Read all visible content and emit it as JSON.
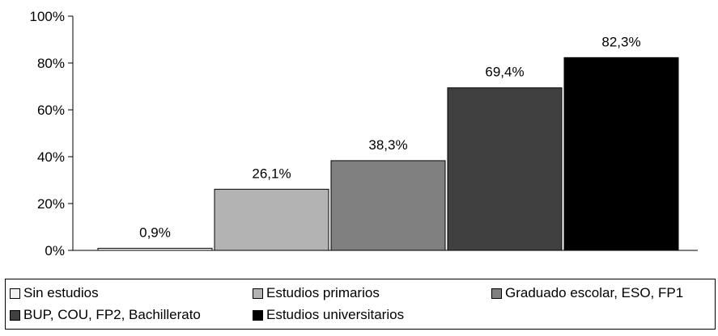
{
  "chart_data": {
    "type": "bar",
    "categories": [
      "Sin estudios",
      "Estudios primarios",
      "Graduado escolar, ESO, FP1",
      "BUP, COU, FP2, Bachillerato",
      "Estudios universitarios"
    ],
    "values": [
      0.9,
      26.1,
      38.3,
      69.4,
      82.3
    ],
    "value_labels": [
      "0,9%",
      "26,1%",
      "38,3%",
      "69,4%",
      "82,3%"
    ],
    "colors": [
      "#f2f2f2",
      "#b3b3b3",
      "#808080",
      "#404040",
      "#000000"
    ],
    "ylim": [
      0,
      100
    ],
    "yticks": [
      0,
      20,
      40,
      60,
      80,
      100
    ],
    "ytick_labels": [
      "0%",
      "20%",
      "40%",
      "60%",
      "80%",
      "100%"
    ],
    "grid": false,
    "legend_position": "bottom"
  },
  "legend": {
    "items": [
      "Sin estudios",
      "Estudios primarios",
      "Graduado escolar, ESO, FP1",
      "BUP, COU, FP2, Bachillerato",
      "Estudios universitarios"
    ]
  }
}
